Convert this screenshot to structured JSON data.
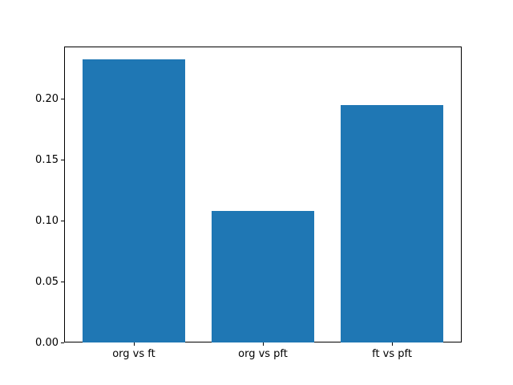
{
  "figure": {
    "background": "#ffffff",
    "spine_color": "#000000",
    "tick_color": "#000000"
  },
  "chart_data": {
    "type": "bar",
    "title": "",
    "xlabel": "",
    "ylabel": "",
    "categories": [
      "org vs ft",
      "org vs pft",
      "ft vs pft"
    ],
    "values": [
      0.232,
      0.108,
      0.195
    ],
    "bar_color": "#1f77b4",
    "bar_width": 0.8,
    "xlim": [
      -0.54,
      2.54
    ],
    "ylim": [
      0,
      0.243
    ],
    "yticks": [
      0,
      0.05,
      0.1,
      0.15,
      0.2
    ],
    "ytick_labels": [
      "0.00",
      "0.05",
      "0.10",
      "0.15",
      "0.20"
    ],
    "grid": false,
    "legend": false
  }
}
